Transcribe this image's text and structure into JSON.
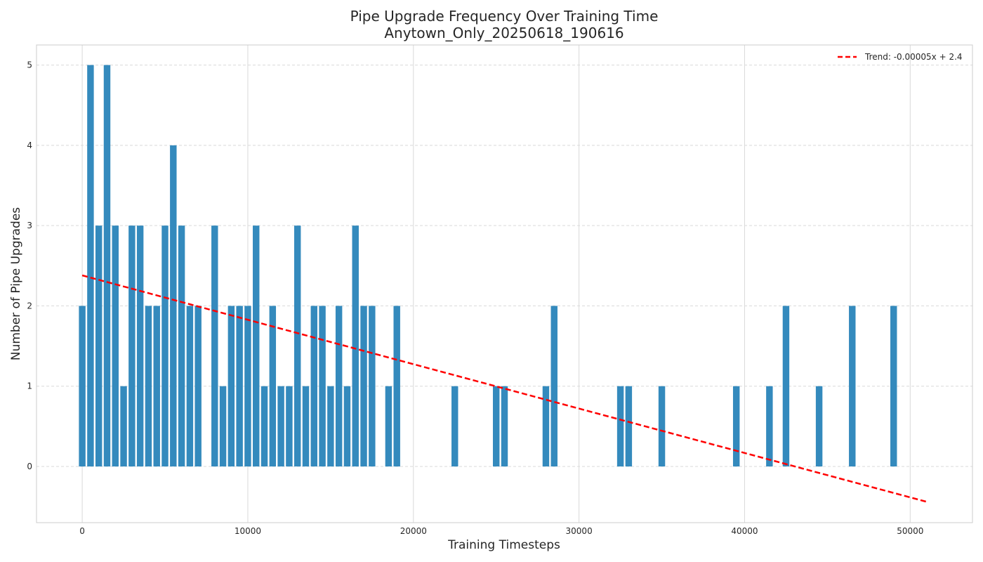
{
  "chart_data": {
    "type": "bar",
    "title": "Pipe Upgrade Frequency Over Training Time",
    "subtitle": "Anytown_Only_20250618_190616",
    "xlabel": "Training Timesteps",
    "ylabel": "Number of Pipe Upgrades",
    "xlim": [
      -2760,
      53760
    ],
    "ylim": [
      -0.7,
      5.25
    ],
    "xticks": [
      0,
      10000,
      20000,
      30000,
      40000,
      50000
    ],
    "xtick_labels": [
      "0",
      "10000",
      "20000",
      "30000",
      "40000",
      "50000"
    ],
    "yticks": [
      0,
      1,
      2,
      3,
      4,
      5
    ],
    "ytick_labels": [
      "0",
      "1",
      "2",
      "3",
      "4",
      "5"
    ],
    "grid": true,
    "legend_position": "top-right",
    "bar_width": 400,
    "bar_color": "#348ABD",
    "x": [
      0,
      500,
      1000,
      1500,
      2000,
      2500,
      3000,
      3500,
      4000,
      4500,
      5000,
      5500,
      6000,
      6500,
      7000,
      8000,
      8500,
      9000,
      9500,
      10000,
      10500,
      11000,
      11500,
      12000,
      12500,
      13000,
      13500,
      14000,
      14500,
      15000,
      15500,
      16000,
      16500,
      17000,
      17500,
      18500,
      19000,
      22500,
      25000,
      25500,
      28000,
      28500,
      32500,
      33000,
      35000,
      39500,
      41500,
      42500,
      44500,
      46500,
      49000
    ],
    "values": [
      2,
      5,
      3,
      5,
      3,
      1,
      3,
      3,
      2,
      2,
      3,
      4,
      3,
      2,
      2,
      3,
      1,
      2,
      2,
      2,
      3,
      1,
      2,
      1,
      1,
      3,
      1,
      2,
      2,
      1,
      2,
      1,
      3,
      2,
      2,
      1,
      2,
      1,
      1,
      1,
      1,
      2,
      1,
      1,
      1,
      1,
      1,
      2,
      1,
      2,
      2
    ],
    "trend": {
      "label": "Trend: -0.00005x + 2.4",
      "x_start": 0,
      "x_end": 51000,
      "slope": -5.53e-05,
      "intercept": 2.38,
      "color": "#FF0000",
      "style": "dashed"
    }
  }
}
